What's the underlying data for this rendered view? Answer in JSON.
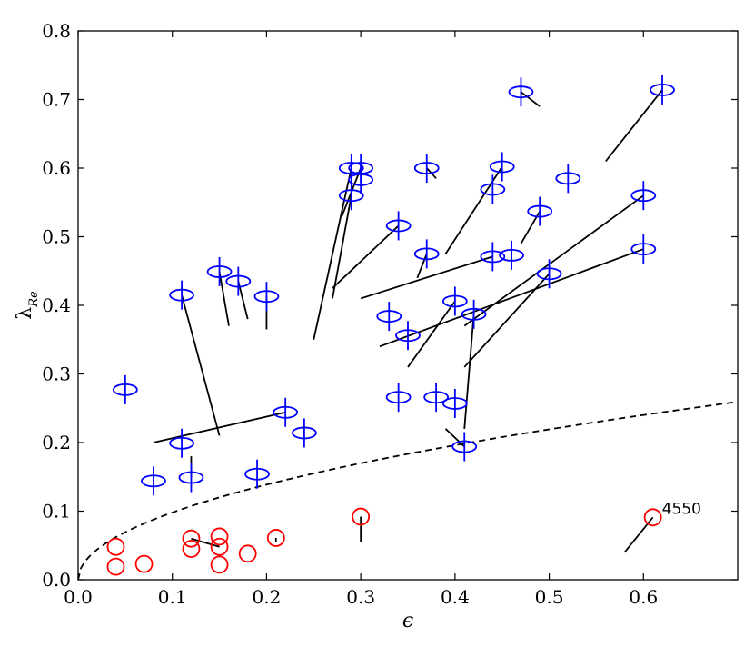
{
  "chart_data": {
    "type": "scatter",
    "title": "",
    "xlabel": "ϵ",
    "ylabel": "λ",
    "ylabel_subscript": "Re",
    "xlim": [
      0.0,
      0.7
    ],
    "ylim": [
      0.0,
      0.8
    ],
    "xticks": [
      "0.0",
      "0.1",
      "0.2",
      "0.3",
      "0.4",
      "0.5",
      "0.6"
    ],
    "yticks": [
      "0.0",
      "0.1",
      "0.2",
      "0.3",
      "0.4",
      "0.5",
      "0.6",
      "0.7",
      "0.8"
    ],
    "grid": false,
    "colors": {
      "fast": "#0000ff",
      "slow": "#ff0000",
      "segment": "#000000",
      "curve": "#000000"
    },
    "limit_curve": {
      "style": "dashed",
      "function": "0.31*sqrt(eps)"
    },
    "series": [
      {
        "marker": "ellipse-with-cross",
        "points": [
          {
            "x": 0.05,
            "y": 0.277,
            "x2": 0.05,
            "y2": 0.277
          },
          {
            "x": 0.08,
            "y": 0.144,
            "x2": 0.08,
            "y2": 0.144
          },
          {
            "x": 0.11,
            "y": 0.415,
            "x2": 0.15,
            "y2": 0.21
          },
          {
            "x": 0.11,
            "y": 0.199,
            "x2": 0.11,
            "y2": 0.199
          },
          {
            "x": 0.12,
            "y": 0.149,
            "x2": 0.12,
            "y2": 0.18
          },
          {
            "x": 0.15,
            "y": 0.449,
            "x2": 0.16,
            "y2": 0.37
          },
          {
            "x": 0.17,
            "y": 0.435,
            "x2": 0.18,
            "y2": 0.38
          },
          {
            "x": 0.19,
            "y": 0.154,
            "x2": 0.19,
            "y2": 0.154
          },
          {
            "x": 0.2,
            "y": 0.413,
            "x2": 0.2,
            "y2": 0.365
          },
          {
            "x": 0.22,
            "y": 0.244,
            "x2": 0.08,
            "y2": 0.2
          },
          {
            "x": 0.24,
            "y": 0.214,
            "x2": 0.24,
            "y2": 0.214
          },
          {
            "x": 0.29,
            "y": 0.6,
            "x2": 0.25,
            "y2": 0.35
          },
          {
            "x": 0.29,
            "y": 0.56,
            "x2": 0.27,
            "y2": 0.41
          },
          {
            "x": 0.3,
            "y": 0.6,
            "x2": 0.28,
            "y2": 0.53
          },
          {
            "x": 0.3,
            "y": 0.583,
            "x2": 0.3,
            "y2": 0.583
          },
          {
            "x": 0.33,
            "y": 0.384,
            "x2": 0.33,
            "y2": 0.384
          },
          {
            "x": 0.34,
            "y": 0.516,
            "x2": 0.27,
            "y2": 0.425
          },
          {
            "x": 0.34,
            "y": 0.266,
            "x2": 0.34,
            "y2": 0.266
          },
          {
            "x": 0.35,
            "y": 0.356,
            "x2": 0.35,
            "y2": 0.356
          },
          {
            "x": 0.37,
            "y": 0.6,
            "x2": 0.38,
            "y2": 0.585
          },
          {
            "x": 0.37,
            "y": 0.475,
            "x2": 0.36,
            "y2": 0.44
          },
          {
            "x": 0.38,
            "y": 0.266,
            "x2": 0.38,
            "y2": 0.266
          },
          {
            "x": 0.4,
            "y": 0.406,
            "x2": 0.35,
            "y2": 0.31
          },
          {
            "x": 0.4,
            "y": 0.257,
            "x2": 0.4,
            "y2": 0.257
          },
          {
            "x": 0.41,
            "y": 0.194,
            "x2": 0.39,
            "y2": 0.22
          },
          {
            "x": 0.42,
            "y": 0.387,
            "x2": 0.41,
            "y2": 0.22
          },
          {
            "x": 0.44,
            "y": 0.569,
            "x2": 0.44,
            "y2": 0.569
          },
          {
            "x": 0.44,
            "y": 0.471,
            "x2": 0.3,
            "y2": 0.41
          },
          {
            "x": 0.45,
            "y": 0.602,
            "x2": 0.39,
            "y2": 0.475
          },
          {
            "x": 0.46,
            "y": 0.473,
            "x2": 0.46,
            "y2": 0.473
          },
          {
            "x": 0.47,
            "y": 0.711,
            "x2": 0.49,
            "y2": 0.69
          },
          {
            "x": 0.49,
            "y": 0.537,
            "x2": 0.47,
            "y2": 0.49
          },
          {
            "x": 0.5,
            "y": 0.446,
            "x2": 0.41,
            "y2": 0.31
          },
          {
            "x": 0.52,
            "y": 0.585,
            "x2": 0.52,
            "y2": 0.585
          },
          {
            "x": 0.6,
            "y": 0.56,
            "x2": 0.41,
            "y2": 0.37
          },
          {
            "x": 0.6,
            "y": 0.482,
            "x2": 0.32,
            "y2": 0.34
          },
          {
            "x": 0.62,
            "y": 0.714,
            "x2": 0.56,
            "y2": 0.61
          }
        ]
      },
      {
        "marker": "circle",
        "points": [
          {
            "x": 0.04,
            "y": 0.048,
            "x2": 0.04,
            "y2": 0.048
          },
          {
            "x": 0.04,
            "y": 0.019,
            "x2": 0.04,
            "y2": 0.019
          },
          {
            "x": 0.07,
            "y": 0.023,
            "x2": 0.07,
            "y2": 0.023
          },
          {
            "x": 0.12,
            "y": 0.06,
            "x2": 0.12,
            "y2": 0.06
          },
          {
            "x": 0.12,
            "y": 0.045,
            "x2": 0.12,
            "y2": 0.045
          },
          {
            "x": 0.15,
            "y": 0.063,
            "x2": 0.15,
            "y2": 0.063
          },
          {
            "x": 0.15,
            "y": 0.048,
            "x2": 0.12,
            "y2": 0.06
          },
          {
            "x": 0.15,
            "y": 0.022,
            "x2": 0.15,
            "y2": 0.022
          },
          {
            "x": 0.18,
            "y": 0.038,
            "x2": 0.18,
            "y2": 0.038
          },
          {
            "x": 0.21,
            "y": 0.061,
            "x2": 0.21,
            "y2": 0.055
          },
          {
            "x": 0.3,
            "y": 0.092,
            "x2": 0.3,
            "y2": 0.055
          },
          {
            "x": 0.61,
            "y": 0.091,
            "x2": 0.58,
            "y2": 0.04
          }
        ]
      }
    ],
    "annotations": [
      {
        "text": "4550",
        "x": 0.61,
        "y": 0.091
      }
    ]
  }
}
